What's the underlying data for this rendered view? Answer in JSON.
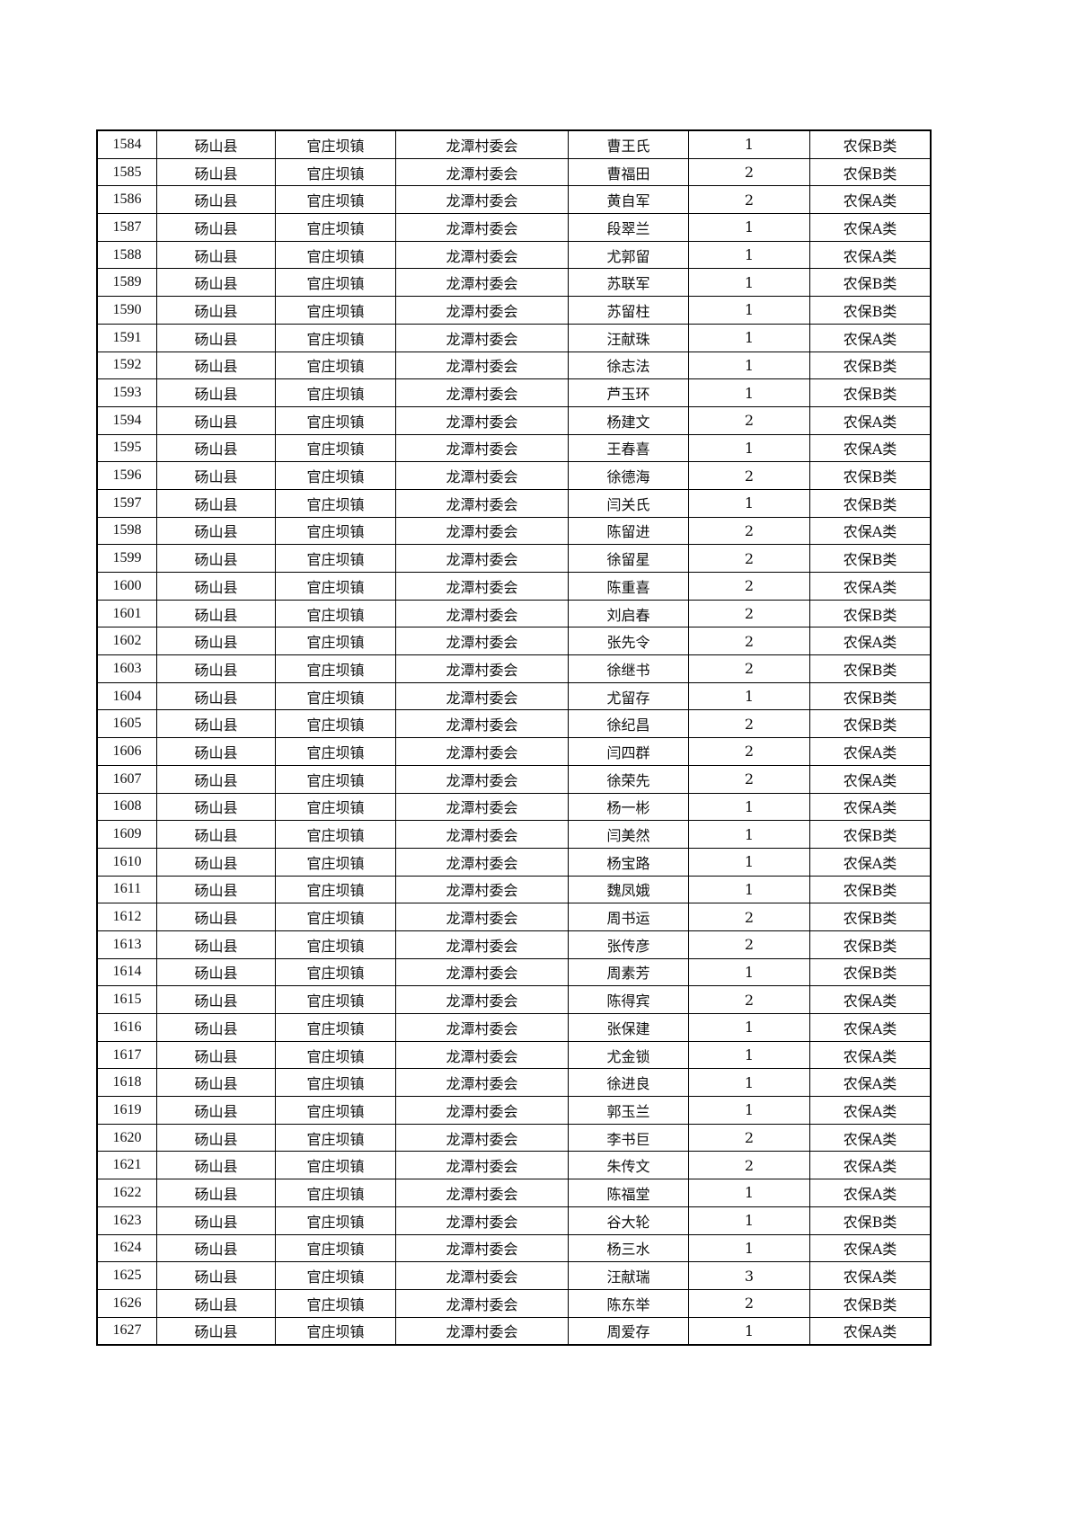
{
  "table": {
    "rows": [
      [
        "1584",
        "砀山县",
        "官庄坝镇",
        "龙潭村委会",
        "曹王氏",
        "1",
        "农保B类"
      ],
      [
        "1585",
        "砀山县",
        "官庄坝镇",
        "龙潭村委会",
        "曹福田",
        "2",
        "农保B类"
      ],
      [
        "1586",
        "砀山县",
        "官庄坝镇",
        "龙潭村委会",
        "黄自军",
        "2",
        "农保A类"
      ],
      [
        "1587",
        "砀山县",
        "官庄坝镇",
        "龙潭村委会",
        "段翠兰",
        "1",
        "农保A类"
      ],
      [
        "1588",
        "砀山县",
        "官庄坝镇",
        "龙潭村委会",
        "尤郭留",
        "1",
        "农保A类"
      ],
      [
        "1589",
        "砀山县",
        "官庄坝镇",
        "龙潭村委会",
        "苏联军",
        "1",
        "农保B类"
      ],
      [
        "1590",
        "砀山县",
        "官庄坝镇",
        "龙潭村委会",
        "苏留柱",
        "1",
        "农保B类"
      ],
      [
        "1591",
        "砀山县",
        "官庄坝镇",
        "龙潭村委会",
        "汪献珠",
        "1",
        "农保A类"
      ],
      [
        "1592",
        "砀山县",
        "官庄坝镇",
        "龙潭村委会",
        "徐志法",
        "1",
        "农保B类"
      ],
      [
        "1593",
        "砀山县",
        "官庄坝镇",
        "龙潭村委会",
        "芦玉环",
        "1",
        "农保B类"
      ],
      [
        "1594",
        "砀山县",
        "官庄坝镇",
        "龙潭村委会",
        "杨建文",
        "2",
        "农保A类"
      ],
      [
        "1595",
        "砀山县",
        "官庄坝镇",
        "龙潭村委会",
        "王春喜",
        "1",
        "农保A类"
      ],
      [
        "1596",
        "砀山县",
        "官庄坝镇",
        "龙潭村委会",
        "徐德海",
        "2",
        "农保B类"
      ],
      [
        "1597",
        "砀山县",
        "官庄坝镇",
        "龙潭村委会",
        "闫关氏",
        "1",
        "农保B类"
      ],
      [
        "1598",
        "砀山县",
        "官庄坝镇",
        "龙潭村委会",
        "陈留进",
        "2",
        "农保A类"
      ],
      [
        "1599",
        "砀山县",
        "官庄坝镇",
        "龙潭村委会",
        "徐留星",
        "2",
        "农保B类"
      ],
      [
        "1600",
        "砀山县",
        "官庄坝镇",
        "龙潭村委会",
        "陈重喜",
        "2",
        "农保A类"
      ],
      [
        "1601",
        "砀山县",
        "官庄坝镇",
        "龙潭村委会",
        "刘启春",
        "2",
        "农保B类"
      ],
      [
        "1602",
        "砀山县",
        "官庄坝镇",
        "龙潭村委会",
        "张先令",
        "2",
        "农保A类"
      ],
      [
        "1603",
        "砀山县",
        "官庄坝镇",
        "龙潭村委会",
        "徐继书",
        "2",
        "农保B类"
      ],
      [
        "1604",
        "砀山县",
        "官庄坝镇",
        "龙潭村委会",
        "尤留存",
        "1",
        "农保B类"
      ],
      [
        "1605",
        "砀山县",
        "官庄坝镇",
        "龙潭村委会",
        "徐纪昌",
        "2",
        "农保B类"
      ],
      [
        "1606",
        "砀山县",
        "官庄坝镇",
        "龙潭村委会",
        "闫四群",
        "2",
        "农保A类"
      ],
      [
        "1607",
        "砀山县",
        "官庄坝镇",
        "龙潭村委会",
        "徐荣先",
        "2",
        "农保A类"
      ],
      [
        "1608",
        "砀山县",
        "官庄坝镇",
        "龙潭村委会",
        "杨一彬",
        "1",
        "农保A类"
      ],
      [
        "1609",
        "砀山县",
        "官庄坝镇",
        "龙潭村委会",
        "闫美然",
        "1",
        "农保B类"
      ],
      [
        "1610",
        "砀山县",
        "官庄坝镇",
        "龙潭村委会",
        "杨宝路",
        "1",
        "农保A类"
      ],
      [
        "1611",
        "砀山县",
        "官庄坝镇",
        "龙潭村委会",
        "魏凤娥",
        "1",
        "农保B类"
      ],
      [
        "1612",
        "砀山县",
        "官庄坝镇",
        "龙潭村委会",
        "周书运",
        "2",
        "农保B类"
      ],
      [
        "1613",
        "砀山县",
        "官庄坝镇",
        "龙潭村委会",
        "张传彦",
        "2",
        "农保B类"
      ],
      [
        "1614",
        "砀山县",
        "官庄坝镇",
        "龙潭村委会",
        "周素芳",
        "1",
        "农保B类"
      ],
      [
        "1615",
        "砀山县",
        "官庄坝镇",
        "龙潭村委会",
        "陈得宾",
        "2",
        "农保A类"
      ],
      [
        "1616",
        "砀山县",
        "官庄坝镇",
        "龙潭村委会",
        "张保建",
        "1",
        "农保A类"
      ],
      [
        "1617",
        "砀山县",
        "官庄坝镇",
        "龙潭村委会",
        "尤金锁",
        "1",
        "农保A类"
      ],
      [
        "1618",
        "砀山县",
        "官庄坝镇",
        "龙潭村委会",
        "徐进良",
        "1",
        "农保A类"
      ],
      [
        "1619",
        "砀山县",
        "官庄坝镇",
        "龙潭村委会",
        "郭玉兰",
        "1",
        "农保A类"
      ],
      [
        "1620",
        "砀山县",
        "官庄坝镇",
        "龙潭村委会",
        "李书巨",
        "2",
        "农保A类"
      ],
      [
        "1621",
        "砀山县",
        "官庄坝镇",
        "龙潭村委会",
        "朱传文",
        "2",
        "农保A类"
      ],
      [
        "1622",
        "砀山县",
        "官庄坝镇",
        "龙潭村委会",
        "陈福堂",
        "1",
        "农保A类"
      ],
      [
        "1623",
        "砀山县",
        "官庄坝镇",
        "龙潭村委会",
        "谷大轮",
        "1",
        "农保B类"
      ],
      [
        "1624",
        "砀山县",
        "官庄坝镇",
        "龙潭村委会",
        "杨三水",
        "1",
        "农保A类"
      ],
      [
        "1625",
        "砀山县",
        "官庄坝镇",
        "龙潭村委会",
        "汪献瑞",
        "3",
        "农保A类"
      ],
      [
        "1626",
        "砀山县",
        "官庄坝镇",
        "龙潭村委会",
        "陈东举",
        "2",
        "农保B类"
      ],
      [
        "1627",
        "砀山县",
        "官庄坝镇",
        "龙潭村委会",
        "周爱存",
        "1",
        "农保A类"
      ]
    ]
  }
}
